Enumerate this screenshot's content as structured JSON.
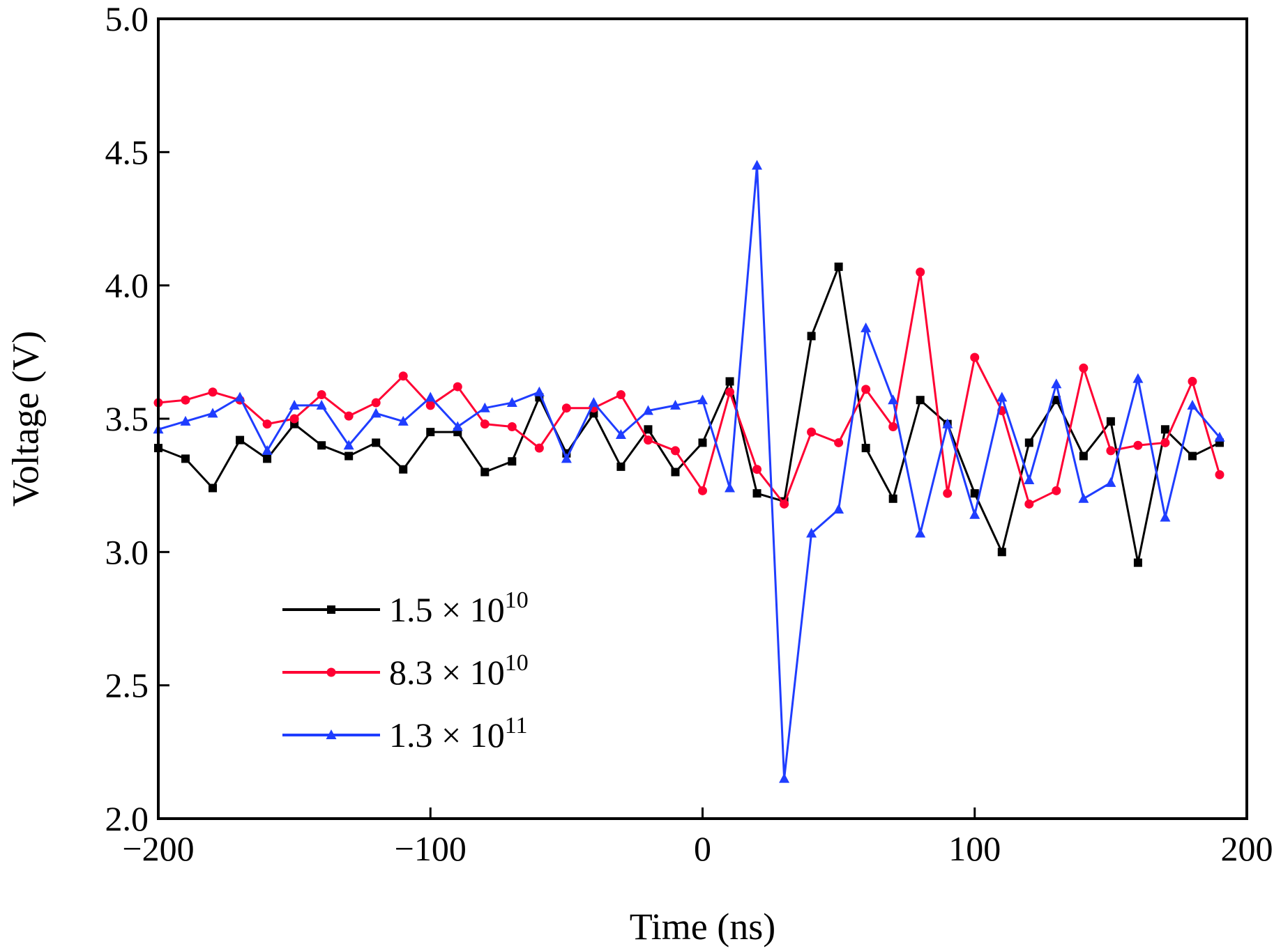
{
  "chart_data": {
    "type": "line",
    "title": "",
    "xlabel": "Time (ns)",
    "ylabel": "Voltage (V)",
    "xlim": [
      -200,
      200
    ],
    "ylim": [
      2.0,
      5.0
    ],
    "xticks": [
      {
        "value": -200,
        "label": "−200"
      },
      {
        "value": -100,
        "label": "−100"
      },
      {
        "value": 0,
        "label": "0"
      },
      {
        "value": 100,
        "label": "100"
      },
      {
        "value": 200,
        "label": "200"
      }
    ],
    "yticks": [
      {
        "value": 2.0,
        "label": "2.0"
      },
      {
        "value": 2.5,
        "label": "2.5"
      },
      {
        "value": 3.0,
        "label": "3.0"
      },
      {
        "value": 3.5,
        "label": "3.5"
      },
      {
        "value": 4.0,
        "label": "4.0"
      },
      {
        "value": 4.5,
        "label": "4.5"
      },
      {
        "value": 5.0,
        "label": "5.0"
      }
    ],
    "grid": false,
    "legend_position": "bottom-left",
    "x": [
      -200,
      -190,
      -180,
      -170,
      -160,
      -150,
      -140,
      -130,
      -120,
      -110,
      -100,
      -90,
      -80,
      -70,
      -60,
      -50,
      -40,
      -30,
      -20,
      -10,
      0,
      10,
      20,
      30,
      40,
      50,
      60,
      70,
      80,
      90,
      100,
      110,
      120,
      130,
      140,
      150,
      160,
      170,
      180,
      190
    ],
    "series": [
      {
        "name_base": "1.5 × 10",
        "name_exp": "10",
        "color": "#000000",
        "marker": "square",
        "values": [
          3.39,
          3.35,
          3.24,
          3.42,
          3.35,
          3.48,
          3.4,
          3.36,
          3.41,
          3.31,
          3.45,
          3.45,
          3.3,
          3.34,
          3.58,
          3.37,
          3.52,
          3.32,
          3.46,
          3.3,
          3.41,
          3.64,
          3.22,
          3.19,
          3.81,
          4.07,
          3.39,
          3.2,
          3.57,
          3.48,
          3.22,
          3.0,
          3.41,
          3.57,
          3.36,
          3.49,
          2.96,
          3.46,
          3.36,
          3.41
        ]
      },
      {
        "name_base": "8.3 × 10",
        "name_exp": "10",
        "color": "#ff0033",
        "marker": "circle",
        "values": [
          3.56,
          3.57,
          3.6,
          3.57,
          3.48,
          3.5,
          3.59,
          3.51,
          3.56,
          3.66,
          3.55,
          3.62,
          3.48,
          3.47,
          3.39,
          3.54,
          3.54,
          3.59,
          3.42,
          3.38,
          3.23,
          3.6,
          3.31,
          3.18,
          3.45,
          3.41,
          3.61,
          3.47,
          4.05,
          3.22,
          3.73,
          3.53,
          3.18,
          3.23,
          3.69,
          3.38,
          3.4,
          3.41,
          3.64,
          3.29
        ]
      },
      {
        "name_base": "1.3 × 10",
        "name_exp": "11",
        "color": "#1f3dff",
        "marker": "triangle",
        "values": [
          3.46,
          3.49,
          3.52,
          3.58,
          3.38,
          3.55,
          3.55,
          3.4,
          3.52,
          3.49,
          3.58,
          3.47,
          3.54,
          3.56,
          3.6,
          3.35,
          3.56,
          3.44,
          3.53,
          3.55,
          3.57,
          3.24,
          4.45,
          2.15,
          3.07,
          3.16,
          3.84,
          3.57,
          3.07,
          3.48,
          3.14,
          3.58,
          3.27,
          3.63,
          3.2,
          3.26,
          3.65,
          3.13,
          3.55,
          3.43
        ]
      }
    ]
  }
}
